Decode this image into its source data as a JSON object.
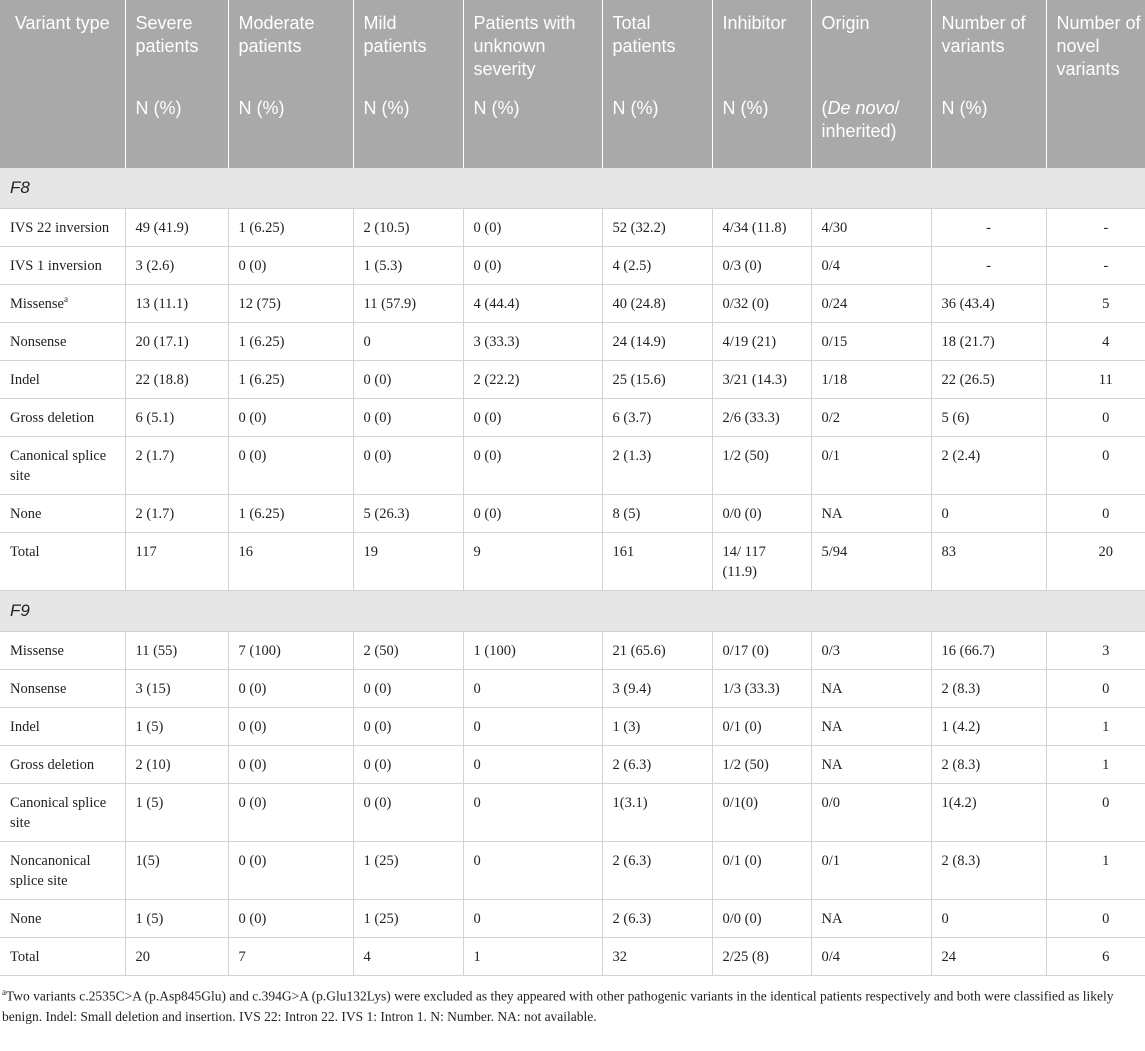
{
  "header": {
    "row1": [
      "Variant type",
      "Severe patients",
      "Moderate patients",
      "Mild patients",
      "Patients with unknown severity",
      "Total patients",
      "Inhibitor",
      "Origin",
      "Number of variants",
      "Number of novel variants"
    ],
    "row2": [
      "",
      "N (%)",
      "N (%)",
      "N (%)",
      "N (%)",
      "N (%)",
      "N (%)",
      "",
      "N (%)",
      ""
    ],
    "origin_sub_italic": "De novo",
    "origin_sub_rest": "/ inherited)",
    "origin_sub_open": "("
  },
  "sections": [
    {
      "name": "F8",
      "rows": [
        {
          "type": "IVS 22 inversion",
          "sup": "",
          "cells": [
            "49 (41.9)",
            "1 (6.25)",
            "2 (10.5)",
            "0 (0)",
            "52 (32.2)",
            "4/34 (11.8)",
            "4/30",
            "-",
            "-"
          ]
        },
        {
          "type": "IVS 1 inversion",
          "sup": "",
          "cells": [
            "3 (2.6)",
            "0 (0)",
            "1 (5.3)",
            "0 (0)",
            "4 (2.5)",
            "0/3 (0)",
            "0/4",
            "-",
            "-"
          ]
        },
        {
          "type": "Missense",
          "sup": "a",
          "cells": [
            "13 (11.1)",
            "12 (75)",
            "11 (57.9)",
            "4 (44.4)",
            "40 (24.8)",
            "0/32 (0)",
            "0/24",
            "36 (43.4)",
            "5"
          ]
        },
        {
          "type": "Nonsense",
          "sup": "",
          "cells": [
            "20 (17.1)",
            "1 (6.25)",
            "0",
            "3 (33.3)",
            "24 (14.9)",
            "4/19 (21)",
            "0/15",
            "18 (21.7)",
            "4"
          ]
        },
        {
          "type": "Indel",
          "sup": "",
          "cells": [
            "22 (18.8)",
            "1 (6.25)",
            "0 (0)",
            "2 (22.2)",
            "25 (15.6)",
            "3/21 (14.3)",
            "1/18",
            "22 (26.5)",
            "11"
          ]
        },
        {
          "type": "Gross deletion",
          "sup": "",
          "cells": [
            "6 (5.1)",
            "0 (0)",
            "0 (0)",
            "0 (0)",
            "6 (3.7)",
            "2/6 (33.3)",
            "0/2",
            "5 (6)",
            "0"
          ]
        },
        {
          "type": "Canonical splice site",
          "sup": "",
          "cells": [
            "2 (1.7)",
            "0 (0)",
            "0 (0)",
            "0 (0)",
            "2 (1.3)",
            "1/2 (50)",
            "0/1",
            "2 (2.4)",
            "0"
          ]
        },
        {
          "type": "None",
          "sup": "",
          "cells": [
            "2 (1.7)",
            "1 (6.25)",
            "5 (26.3)",
            "0 (0)",
            "8 (5)",
            "0/0 (0)",
            "NA",
            "0",
            "0"
          ]
        },
        {
          "type": "Total",
          "sup": "",
          "cells": [
            "117",
            "16",
            "19",
            "9",
            "161",
            "14/ 117 (11.9)",
            "5/94",
            "83",
            "20"
          ]
        }
      ]
    },
    {
      "name": "F9",
      "rows": [
        {
          "type": "Missense",
          "sup": "",
          "cells": [
            "11 (55)",
            "7 (100)",
            "2 (50)",
            "1 (100)",
            "21 (65.6)",
            "0/17 (0)",
            "0/3",
            "16 (66.7)",
            "3"
          ]
        },
        {
          "type": "Nonsense",
          "sup": "",
          "cells": [
            "3 (15)",
            "0 (0)",
            "0 (0)",
            "0",
            "3 (9.4)",
            "1/3 (33.3)",
            "NA",
            "2 (8.3)",
            "0"
          ]
        },
        {
          "type": "Indel",
          "sup": "",
          "cells": [
            "1 (5)",
            "0 (0)",
            "0 (0)",
            "0",
            "1 (3)",
            "0/1 (0)",
            "NA",
            "1 (4.2)",
            "1"
          ]
        },
        {
          "type": "Gross deletion",
          "sup": "",
          "cells": [
            "2 (10)",
            "0 (0)",
            "0 (0)",
            "0",
            "2 (6.3)",
            "1/2 (50)",
            "NA",
            "2 (8.3)",
            "1"
          ]
        },
        {
          "type": "Canonical splice site",
          "sup": "",
          "cells": [
            "1 (5)",
            "0 (0)",
            "0 (0)",
            "0",
            "1(3.1)",
            "0/1(0)",
            "0/0",
            "1(4.2)",
            "0"
          ]
        },
        {
          "type": "Noncanonical splice site",
          "sup": "",
          "cells": [
            "1(5)",
            "0 (0)",
            "1 (25)",
            "0",
            "2 (6.3)",
            "0/1 (0)",
            "0/1",
            "2 (8.3)",
            "1"
          ]
        },
        {
          "type": "None",
          "sup": "",
          "cells": [
            "1 (5)",
            "0 (0)",
            "1 (25)",
            "0",
            "2 (6.3)",
            "0/0 (0)",
            "NA",
            "0",
            "0"
          ]
        },
        {
          "type": "Total",
          "sup": "",
          "cells": [
            "20",
            "7",
            "4",
            "1",
            "32",
            "2/25 (8)",
            "0/4",
            "24",
            "6"
          ]
        }
      ]
    }
  ],
  "footnote": {
    "marker": "a",
    "text": "Two variants c.2535C>A (p.Asp845Glu) and c.394G>A (p.Glu132Lys) were excluded as they appeared with other pathogenic variants in the identical patients respectively and both were classified as likely benign. Indel: Small deletion and insertion. IVS 22: Intron 22. IVS 1: Intron 1. N: Number. NA: not available."
  }
}
